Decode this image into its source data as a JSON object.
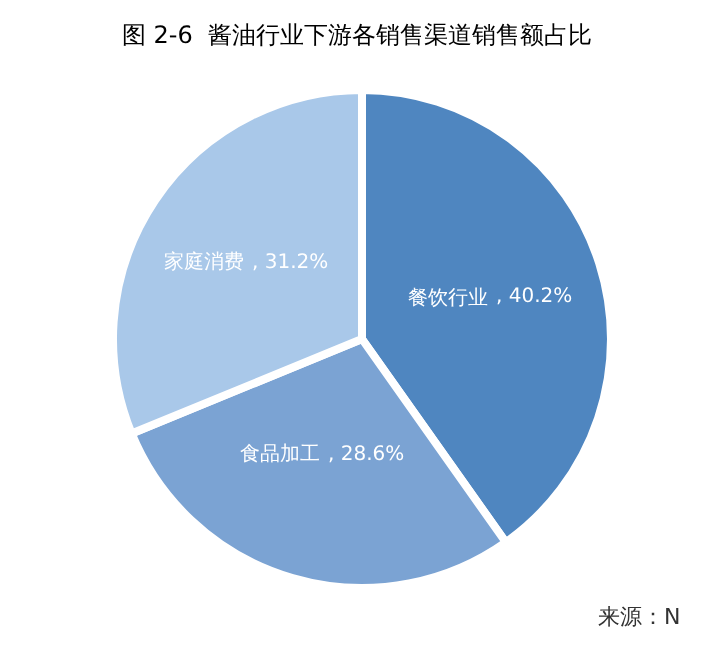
{
  "chart_data": {
    "type": "pie",
    "title": "图 2-6  酱油行业下游各销售渠道销售额占比",
    "categories": [
      "餐饮行业",
      "食品加工",
      "家庭消费"
    ],
    "values": [
      40.2,
      28.6,
      31.2
    ],
    "value_labels": [
      ", 40.2%",
      ", 28.6%",
      ", 31.2%"
    ],
    "colors": [
      "#4f86c0",
      "#7ba3d3",
      "#a9c8e9"
    ],
    "annotations": [
      "来源：N"
    ],
    "legend": false
  }
}
